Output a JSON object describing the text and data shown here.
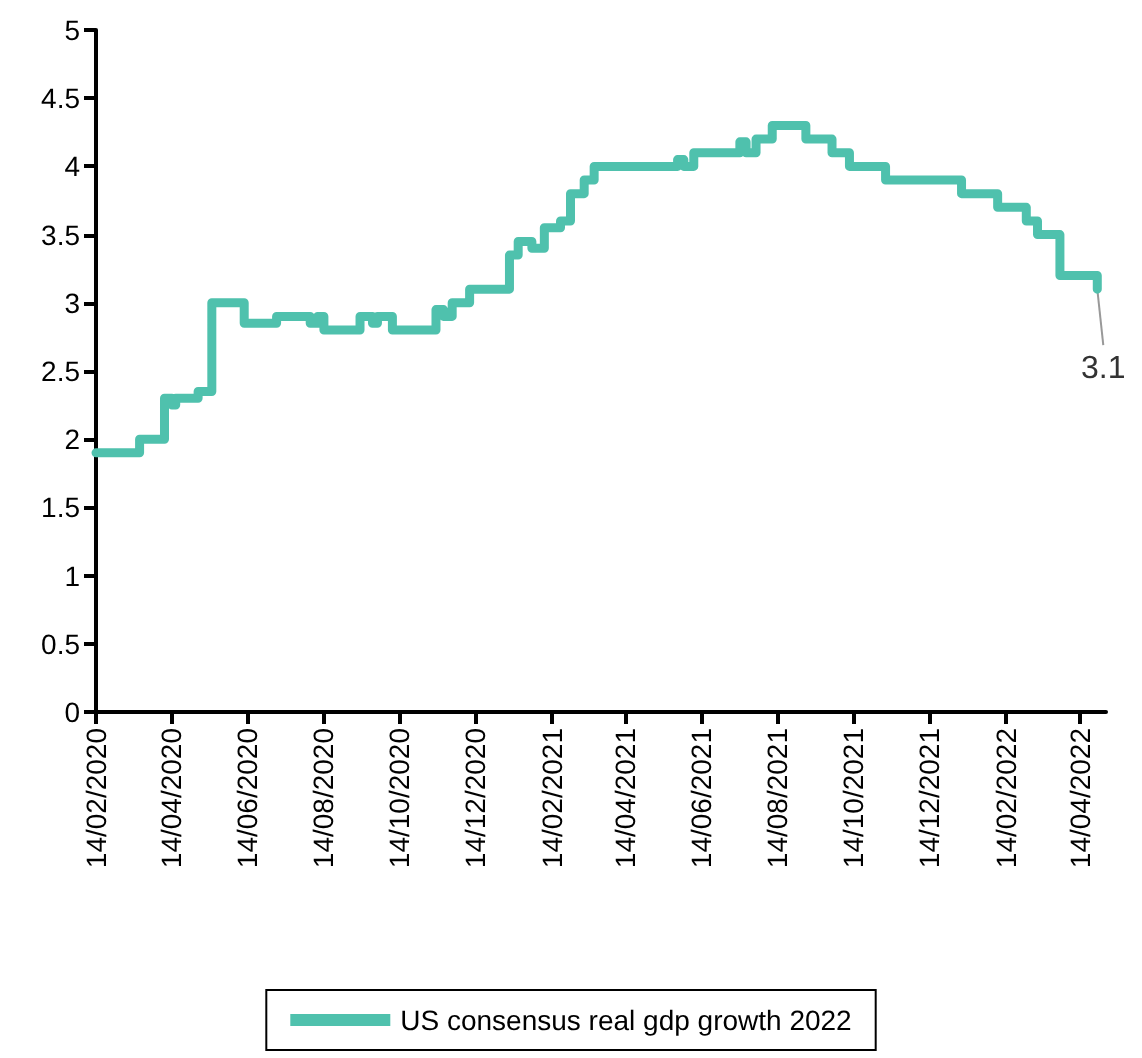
{
  "chart_data": {
    "type": "step",
    "x": [
      "2020-02-14",
      "2020-03-20",
      "2020-04-09",
      "2020-04-15",
      "2020-04-18",
      "2020-05-06",
      "2020-05-17",
      "2020-06-12",
      "2020-07-08",
      "2020-08-04",
      "2020-08-10",
      "2020-08-15",
      "2020-09-13",
      "2020-09-23",
      "2020-09-27",
      "2020-10-09",
      "2020-11-13",
      "2020-11-19",
      "2020-11-26",
      "2020-12-10",
      "2021-01-11",
      "2021-01-18",
      "2021-01-29",
      "2021-02-08",
      "2021-02-21",
      "2021-03-01",
      "2021-03-12",
      "2021-03-20",
      "2021-05-26",
      "2021-05-31",
      "2021-06-08",
      "2021-07-15",
      "2021-07-20",
      "2021-07-28",
      "2021-08-10",
      "2021-09-06",
      "2021-09-27",
      "2021-10-11",
      "2021-11-09",
      "2022-01-09",
      "2022-02-07",
      "2022-03-02",
      "2022-03-11",
      "2022-03-29",
      "2022-04-28"
    ],
    "series": [
      {
        "name": "US consensus real gdp growth 2022",
        "color": "#4fc1ad",
        "values": [
          1.9,
          2.0,
          2.3,
          2.25,
          2.3,
          2.35,
          3.0,
          2.85,
          2.9,
          2.85,
          2.9,
          2.8,
          2.9,
          2.85,
          2.9,
          2.8,
          2.95,
          2.9,
          3.0,
          3.1,
          3.35,
          3.45,
          3.4,
          3.55,
          3.6,
          3.8,
          3.9,
          4.0,
          4.05,
          4.0,
          4.1,
          4.18,
          4.1,
          4.2,
          4.3,
          4.2,
          4.1,
          4.0,
          3.9,
          3.8,
          3.7,
          3.6,
          3.5,
          3.2,
          3.1
        ]
      }
    ],
    "annotations": [
      {
        "text": "3.1",
        "x": "2022-04-28",
        "y": 3.1
      }
    ],
    "xlim": [
      "2020-02-14",
      "2022-05-05"
    ],
    "xticks": [
      {
        "value": "2020-02-14",
        "label": "14/02/2020"
      },
      {
        "value": "2020-04-14",
        "label": "14/04/2020"
      },
      {
        "value": "2020-06-14",
        "label": "14/06/2020"
      },
      {
        "value": "2020-08-14",
        "label": "14/08/2020"
      },
      {
        "value": "2020-10-14",
        "label": "14/10/2020"
      },
      {
        "value": "2020-12-14",
        "label": "14/12/2020"
      },
      {
        "value": "2021-02-14",
        "label": "14/02/2021"
      },
      {
        "value": "2021-04-14",
        "label": "14/04/2021"
      },
      {
        "value": "2021-06-14",
        "label": "14/06/2021"
      },
      {
        "value": "2021-08-14",
        "label": "14/08/2021"
      },
      {
        "value": "2021-10-14",
        "label": "14/10/2021"
      },
      {
        "value": "2021-12-14",
        "label": "14/12/2021"
      },
      {
        "value": "2022-02-14",
        "label": "14/02/2022"
      },
      {
        "value": "2022-04-14",
        "label": "14/04/2022"
      }
    ],
    "ylim": [
      0,
      5
    ],
    "yticks": [
      0,
      0.5,
      1,
      1.5,
      2,
      2.5,
      3,
      3.5,
      4,
      4.5,
      5
    ],
    "grid": false,
    "legend": "bottom",
    "marker": "none",
    "line_style": "solid"
  }
}
